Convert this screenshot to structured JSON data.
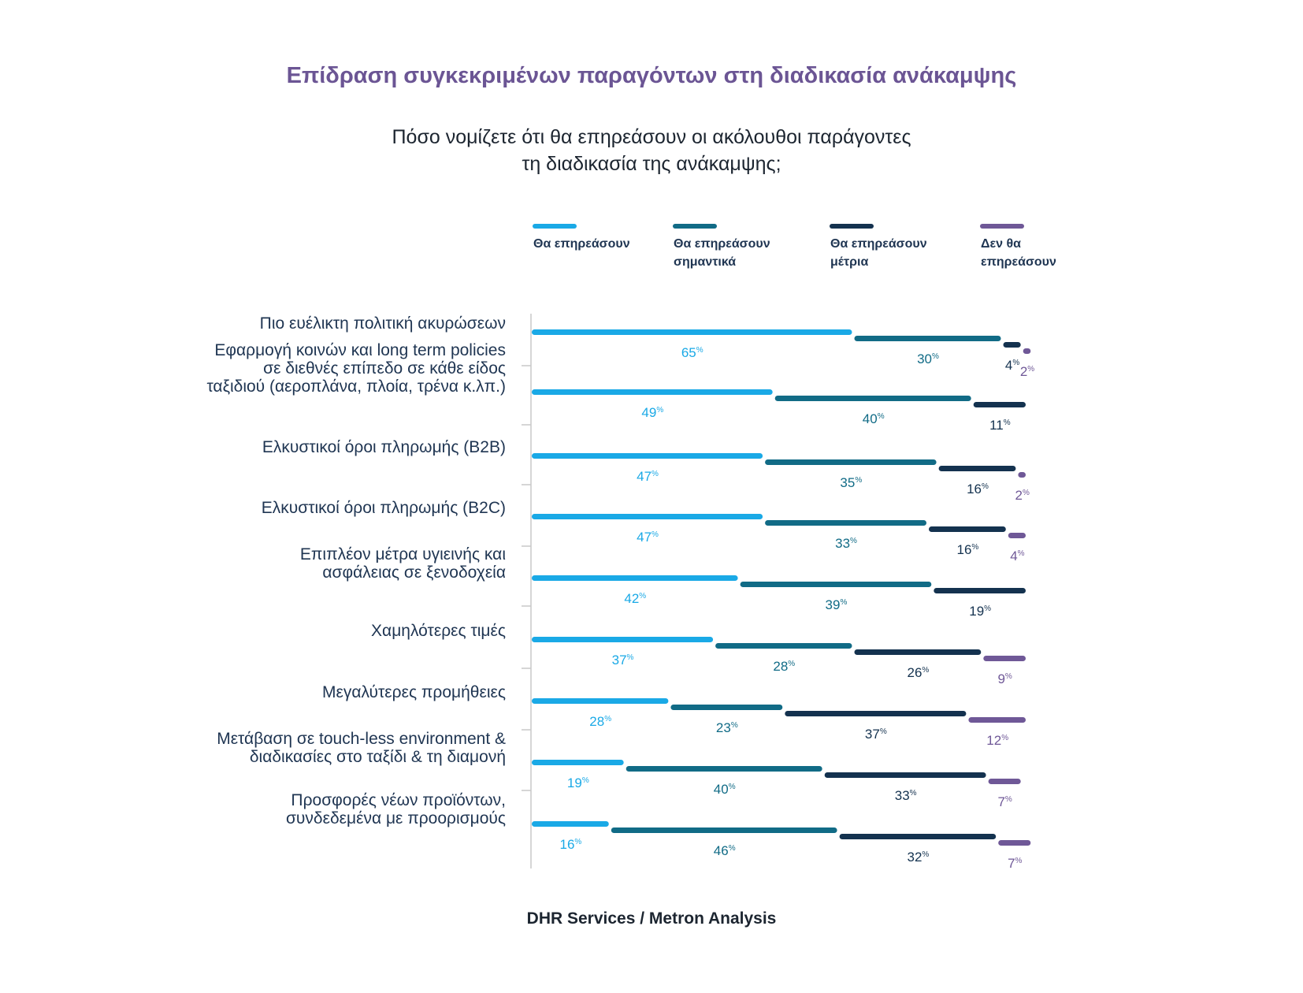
{
  "header": {
    "title": "Επίδραση συγκεκριμένων παραγόντων στη διαδικασία ανάκαμψης",
    "subtitle_lines": [
      "Πόσο νομίζετε ότι θα επηρεάσουν οι ακόλουθοι παράγοντες",
      "τη διαδικασία της ανάκαμψης;"
    ]
  },
  "source": "DHR Services / Metron Analysis",
  "chart_data": {
    "type": "bar",
    "stacked": true,
    "orientation": "horizontal",
    "value_suffix": "%",
    "legend_position": "top",
    "series": [
      {
        "name": "Θα επηρεάσουν",
        "name_lines": [
          "Θα επηρεάσουν"
        ],
        "color": "#1aa9e6",
        "values": [
          65,
          49,
          47,
          47,
          42,
          37,
          28,
          19,
          16
        ]
      },
      {
        "name": "Θα επηρεάσουν σημαντικά",
        "name_lines": [
          "Θα επηρεάσουν",
          "σημαντικά"
        ],
        "color": "#116b86",
        "values": [
          30,
          40,
          35,
          33,
          39,
          28,
          23,
          40,
          46
        ]
      },
      {
        "name": "Θα επηρεάσουν μέτρια",
        "name_lines": [
          "Θα επηρεάσουν",
          "μέτρια"
        ],
        "color": "#14324f",
        "values": [
          4,
          11,
          16,
          16,
          19,
          26,
          37,
          33,
          32
        ]
      },
      {
        "name": "Δεν θα επηρεάσουν",
        "name_lines": [
          "Δεν θα",
          "επηρεάσουν"
        ],
        "color": "#6f5897",
        "values": [
          2,
          0,
          2,
          4,
          0,
          9,
          12,
          7,
          7
        ]
      }
    ],
    "categories": [
      {
        "label": "Πιο ευέλικτη πολιτική ακυρώσεων",
        "lines": [
          "Πιο ευέλικτη πολιτική ακυρώσεων"
        ]
      },
      {
        "label": "Εφαρμογή κοινών και long term policies σε διεθνές επίπεδο σε κάθε είδος ταξιδιού (αεροπλάνα, πλοία, τρένα κ.λπ.)",
        "lines": [
          "Εφαρμογή κοινών και long term policies",
          "σε διεθνές επίπεδο σε κάθε είδος",
          "ταξιδιού (αεροπλάνα, πλοία, τρένα κ.λπ.)"
        ]
      },
      {
        "label": "Ελκυστικοί όροι πληρωμής (B2B)",
        "lines": [
          "Ελκυστικοί όροι πληρωμής (B2B)"
        ]
      },
      {
        "label": "Ελκυστικοί όροι πληρωμής (B2C)",
        "lines": [
          "Ελκυστικοί όροι πληρωμής (B2C)"
        ]
      },
      {
        "label": "Επιπλέον μέτρα υγιεινής και ασφάλειας σε ξενοδοχεία",
        "lines": [
          "Επιπλέον μέτρα υγιεινής και",
          "ασφάλειας σε ξενοδοχεία"
        ]
      },
      {
        "label": "Χαμηλότερες τιμές",
        "lines": [
          "Χαμηλότερες τιμές"
        ]
      },
      {
        "label": "Μεγαλύτερες προμήθειες",
        "lines": [
          "Μεγαλύτερες προμήθειες"
        ]
      },
      {
        "label": "Μετάβαση σε touch-less environment & διαδικασίες στο ταξίδι & τη διαμονή",
        "lines": [
          "Μετάβαση σε touch-less environment &",
          "διαδικασίες στο ταξίδι & τη διαμονή"
        ]
      },
      {
        "label": "Προσφορές νέων προϊόντων, συνδεδεμένα με προορισμούς",
        "lines": [
          "Προσφορές νέων προϊόντων,",
          "συνδεδεμένα με προορισμούς"
        ]
      }
    ]
  }
}
